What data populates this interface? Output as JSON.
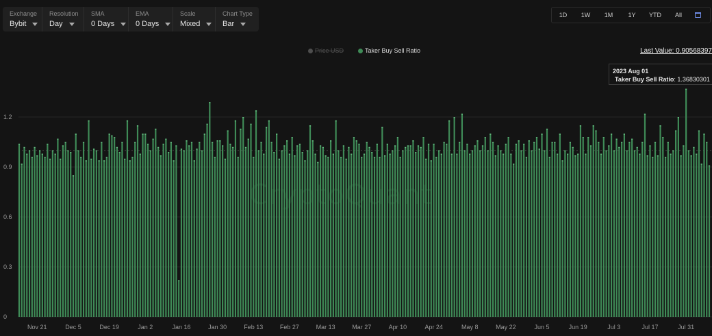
{
  "controls": [
    {
      "label": "Exchange",
      "value": "Bybit"
    },
    {
      "label": "Resolution",
      "value": "Day"
    },
    {
      "label": "SMA",
      "value": "0 Days"
    },
    {
      "label": "EMA",
      "value": "0 Days"
    },
    {
      "label": "Scale",
      "value": "Mixed"
    },
    {
      "label": "Chart Type",
      "value": "Bar"
    }
  ],
  "range_buttons": [
    "1D",
    "1W",
    "1M",
    "1Y",
    "YTD",
    "All"
  ],
  "legend": {
    "price": "Price USD",
    "taker": "Taker Buy Sell Ratio"
  },
  "last_value": "Last Value: 0.90568397",
  "tooltip": {
    "date": "2023 Aug 01",
    "series": "Taker Buy Sell Ratio",
    "value": "1.36830301"
  },
  "watermark": "CryptoQuant",
  "colors": {
    "bar": "#3f8b57",
    "bar_top": "#63b87e",
    "background": "#141414",
    "grid": "#262626"
  },
  "chart_data": {
    "type": "bar",
    "title": "",
    "xlabel": "",
    "ylabel": "",
    "ylim": [
      0,
      1.42
    ],
    "yticks": [
      0,
      0.3,
      0.6,
      0.9,
      1.2
    ],
    "ytick_labels": [
      "0",
      "0.3",
      "0.6",
      "0.9",
      "1.2"
    ],
    "reference_line": 1.0,
    "xtick_labels": [
      "Nov 21",
      "Dec 5",
      "Dec 19",
      "Jan 2",
      "Jan 16",
      "Jan 30",
      "Feb 13",
      "Feb 27",
      "Mar 13",
      "Mar 27",
      "Apr 10",
      "Apr 24",
      "May 8",
      "May 22",
      "Jun 5",
      "Jun 19",
      "Jul 3",
      "Jul 17",
      "Jul 31"
    ],
    "x_start": "2022-11-14",
    "x_end": "2023-08-08",
    "series": [
      {
        "name": "Taker Buy Sell Ratio",
        "values": [
          1.04,
          0.92,
          1.02,
          0.98,
          1.0,
          0.96,
          1.02,
          0.97,
          1.0,
          0.98,
          0.96,
          1.04,
          0.95,
          1.0,
          0.98,
          1.07,
          0.95,
          1.03,
          1.05,
          1.0,
          0.99,
          0.85,
          1.1,
          1.0,
          0.96,
          1.05,
          0.94,
          1.18,
          0.95,
          1.01,
          1.0,
          0.94,
          1.05,
          0.94,
          0.96,
          1.1,
          1.09,
          1.08,
          1.02,
          0.99,
          1.05,
          0.95,
          1.18,
          0.94,
          0.96,
          1.05,
          1.15,
          0.98,
          1.1,
          1.1,
          1.04,
          1.0,
          1.07,
          1.13,
          1.02,
          0.97,
          1.04,
          1.07,
          0.99,
          1.05,
          0.94,
          1.03,
          0.22,
          1.01,
          1.0,
          1.06,
          1.03,
          1.05,
          0.94,
          1.01,
          1.05,
          1.0,
          1.1,
          1.16,
          1.29,
          1.05,
          0.96,
          1.06,
          1.06,
          1.03,
          0.95,
          1.12,
          1.04,
          1.02,
          1.18,
          0.96,
          1.13,
          1.2,
          1.02,
          1.07,
          1.16,
          0.96,
          1.24,
          1.0,
          1.05,
          0.98,
          1.14,
          1.18,
          1.05,
          0.99,
          1.1,
          0.95,
          1.0,
          1.03,
          1.06,
          0.98,
          1.08,
          0.97,
          1.03,
          1.04,
          0.99,
          0.94,
          1.0,
          1.15,
          1.06,
          0.98,
          0.93,
          1.03,
          1.02,
          0.97,
          0.96,
          1.06,
          0.98,
          1.18,
          1.0,
          0.96,
          1.03,
          0.95,
          1.02,
          0.98,
          1.08,
          1.06,
          1.04,
          0.96,
          0.98,
          1.05,
          1.02,
          0.99,
          0.96,
          1.04,
          0.96,
          1.14,
          0.97,
          1.04,
          0.98,
          1.0,
          1.03,
          1.08,
          0.96,
          1.0,
          1.02,
          1.03,
          1.03,
          1.06,
          0.99,
          1.03,
          1.02,
          1.08,
          0.95,
          1.04,
          0.94,
          1.04,
          0.96,
          1.0,
          0.98,
          1.05,
          1.04,
          1.18,
          0.98,
          1.2,
          0.98,
          1.05,
          1.22,
          1.0,
          1.04,
          0.98,
          1.0,
          1.03,
          1.06,
          1.0,
          1.03,
          1.08,
          1.0,
          1.1,
          1.05,
          0.97,
          1.03,
          1.0,
          0.98,
          1.04,
          1.08,
          0.98,
          0.92,
          1.04,
          1.06,
          1.0,
          1.04,
          0.96,
          1.06,
          1.0,
          1.05,
          1.08,
          1.01,
          1.1,
          1.0,
          1.13,
          0.96,
          1.05,
          1.05,
          0.98,
          1.1,
          0.94,
          1.0,
          0.98,
          1.05,
          1.02,
          0.97,
          0.98,
          1.15,
          1.08,
          0.98,
          1.08,
          1.03,
          1.15,
          1.12,
          1.05,
          0.98,
          1.08,
          1.0,
          1.03,
          1.1,
          1.0,
          1.07,
          1.02,
          1.05,
          1.1,
          1.0,
          1.05,
          1.07,
          1.0,
          1.02,
          0.98,
          1.05,
          1.22,
          0.97,
          1.03,
          0.96,
          1.05,
          0.97,
          1.15,
          1.08,
          0.96,
          1.05,
          0.98,
          1.0,
          1.12,
          1.2,
          0.97,
          1.03,
          1.37,
          1.0,
          0.97,
          1.02,
          0.98,
          1.12,
          0.92,
          1.1,
          1.05,
          0.91
        ]
      }
    ]
  }
}
